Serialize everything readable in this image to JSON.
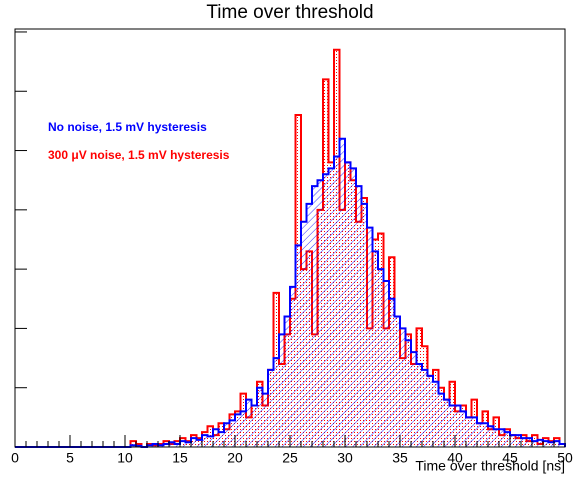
{
  "chart_data": {
    "type": "histogram",
    "title": "Time over threshold",
    "x_label": "Time over threshold [ns]",
    "bins": [
      0,
      0.5,
      1,
      1.5,
      2,
      2.5,
      3,
      3.5,
      4,
      4.5,
      5,
      5.5,
      6,
      6.5,
      7,
      7.5,
      8,
      8.5,
      9,
      9.5,
      10,
      10.5,
      11,
      11.5,
      12,
      12.5,
      13,
      13.5,
      14,
      14.5,
      15,
      15.5,
      16,
      16.5,
      17,
      17.5,
      18,
      18.5,
      19,
      19.5,
      20,
      20.5,
      21,
      21.5,
      22,
      22.5,
      23,
      23.5,
      24,
      24.5,
      25,
      25.5,
      26,
      26.5,
      27,
      27.5,
      28,
      28.5,
      29,
      29.5,
      30,
      30.5,
      31,
      31.5,
      32,
      32.5,
      33,
      33.5,
      34,
      34.5,
      35,
      35.5,
      36,
      36.5,
      37,
      37.5,
      38,
      38.5,
      39,
      39.5,
      40,
      40.5,
      41,
      41.5,
      42,
      42.5,
      43,
      43.5,
      44,
      44.5,
      45,
      45.5,
      46,
      46.5,
      47,
      47.5,
      48,
      48.5,
      49,
      49.5,
      50
    ],
    "series": [
      {
        "name": "300 μV noise, 1.5 mV hysteresis",
        "color": "#ff0000",
        "values": [
          0,
          0,
          0,
          0,
          0,
          0,
          0,
          0,
          0,
          0,
          0,
          0,
          0,
          0,
          0,
          0,
          0,
          0,
          0,
          0,
          0,
          1,
          0.5,
          0,
          0.5,
          0.3,
          0.5,
          1,
          0.5,
          1,
          1.5,
          1,
          2,
          1.5,
          2.5,
          3.5,
          2,
          4,
          3,
          5.5,
          6,
          9,
          5,
          7,
          11,
          7,
          13,
          26,
          14,
          19,
          25,
          56,
          30,
          33,
          19,
          40,
          62,
          48,
          67,
          40,
          48,
          45,
          38,
          42,
          20,
          35,
          36,
          20,
          32,
          22,
          15,
          19,
          14,
          20,
          17,
          12,
          13,
          10,
          8,
          11,
          6,
          7,
          5,
          8,
          4,
          6,
          3,
          5,
          2,
          3,
          2,
          1.5,
          2,
          1,
          2,
          0.5,
          1.5,
          1,
          1.5,
          0.5
        ]
      },
      {
        "name": "No noise, 1.5 mV hysteresis",
        "color": "#0000ff",
        "values": [
          0,
          0,
          0,
          0,
          0,
          0,
          0,
          0,
          0,
          0,
          0,
          0,
          0,
          0,
          0,
          0,
          0,
          0,
          0,
          0,
          0,
          0.3,
          0.2,
          0,
          0.3,
          0.5,
          0.3,
          0.5,
          0.8,
          0.5,
          1,
          0.8,
          1.5,
          1.2,
          2,
          1.8,
          3,
          2.5,
          4,
          4.5,
          5.5,
          6,
          8,
          7,
          10,
          9,
          13,
          15,
          19,
          22,
          27,
          34,
          38,
          41,
          44,
          45,
          46,
          47,
          49,
          52,
          48,
          47,
          44,
          41,
          37,
          33,
          30,
          28,
          25,
          22,
          20,
          18,
          16,
          14,
          13,
          12,
          11,
          9,
          8,
          7,
          7,
          6,
          5,
          5,
          4,
          4,
          3.5,
          3,
          3,
          2.5,
          2,
          2,
          1.5,
          1.5,
          1,
          1.2,
          1,
          0.8,
          1,
          0.5
        ]
      }
    ],
    "xlim": [
      0,
      50
    ],
    "xticks": [
      0,
      5,
      10,
      15,
      20,
      25,
      30,
      35,
      40,
      45,
      50
    ],
    "ylim": [
      0,
      70.5
    ],
    "yticks": [
      0,
      10,
      20,
      30,
      40,
      50,
      60,
      70
    ]
  }
}
